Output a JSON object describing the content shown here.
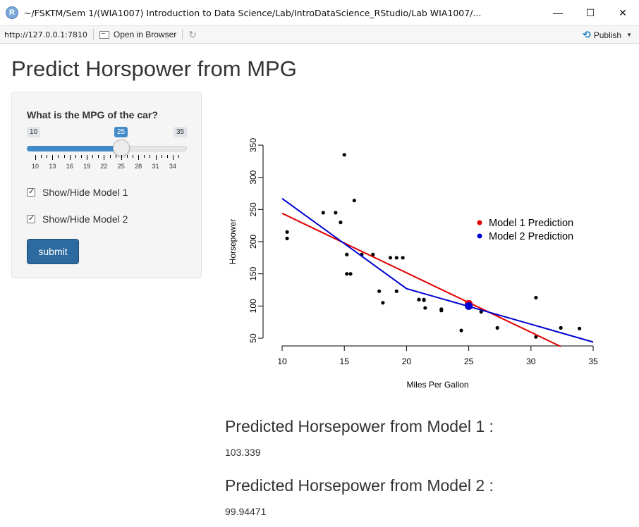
{
  "window": {
    "title": "~/FSKTM/Sem 1/(WIA1007) Introduction to Data Science/Lab/IntroDataScience_RStudio/Lab WIA1007/...",
    "app_icon": "R",
    "minimize": "—",
    "maximize": "☐",
    "close": "✕"
  },
  "toolbar": {
    "url": "http://127.0.0.1:7810",
    "open_browser": "Open in Browser",
    "publish": "Publish",
    "refresh_icon": "refresh-icon"
  },
  "page": {
    "title": "Predict Horspower from MPG"
  },
  "sidebar": {
    "slider": {
      "label": "What is the MPG of the car?",
      "min": 10,
      "max": 35,
      "value": 25,
      "min_label": "10",
      "max_label": "35",
      "value_label": "25",
      "tick_labels": [
        "10",
        "13",
        "16",
        "19",
        "22",
        "25",
        "28",
        "31",
        "34"
      ]
    },
    "checkbox1": {
      "label": "Show/Hide Model 1",
      "checked": true
    },
    "checkbox2": {
      "label": "Show/Hide Model 2",
      "checked": true
    },
    "submit_label": "submit"
  },
  "chart_data": {
    "type": "scatter",
    "title": "",
    "xlabel": "Miles Per Gallon",
    "ylabel": "Horsepower",
    "xlim": [
      10,
      35
    ],
    "ylim": [
      50,
      350
    ],
    "x_ticks": [
      "10",
      "15",
      "20",
      "25",
      "30",
      "35"
    ],
    "y_ticks": [
      "50",
      "100",
      "150",
      "200",
      "250",
      "300",
      "350"
    ],
    "points": [
      [
        21,
        110
      ],
      [
        21,
        110
      ],
      [
        22.8,
        93
      ],
      [
        21.4,
        110
      ],
      [
        18.7,
        175
      ],
      [
        18.1,
        105
      ],
      [
        14.3,
        245
      ],
      [
        24.4,
        62
      ],
      [
        22.8,
        95
      ],
      [
        19.2,
        123
      ],
      [
        17.8,
        123
      ],
      [
        16.4,
        180
      ],
      [
        17.3,
        180
      ],
      [
        15.2,
        180
      ],
      [
        10.4,
        205
      ],
      [
        10.4,
        215
      ],
      [
        14.7,
        230
      ],
      [
        32.4,
        66
      ],
      [
        30.4,
        52
      ],
      [
        33.9,
        65
      ],
      [
        21.5,
        97
      ],
      [
        15.5,
        150
      ],
      [
        15.2,
        150
      ],
      [
        13.3,
        245
      ],
      [
        19.2,
        175
      ],
      [
        27.3,
        66
      ],
      [
        26,
        91
      ],
      [
        30.4,
        113
      ],
      [
        15.8,
        264
      ],
      [
        19.7,
        175
      ],
      [
        15,
        335
      ],
      [
        21.4,
        109
      ]
    ],
    "series": [
      {
        "name": "Model 1 Prediction",
        "color": "#e00000",
        "line": [
          [
            10,
            244
          ],
          [
            32.4,
            37
          ]
        ]
      },
      {
        "name": "Model 2 Prediction",
        "color": "#0000d0",
        "line": [
          [
            10,
            267
          ],
          [
            20,
            127
          ],
          [
            35,
            44
          ]
        ]
      }
    ],
    "predictions": [
      {
        "name": "Model 1 Prediction",
        "x": 25,
        "y": 103.339,
        "color": "#e00000"
      },
      {
        "name": "Model 2 Prediction",
        "x": 25,
        "y": 99.94471,
        "color": "#0000d0"
      }
    ],
    "legend_position": "right",
    "grid": false
  },
  "outputs": {
    "model1_heading": "Predicted Horsepower from Model 1 :",
    "model1_value": "103.339",
    "model2_heading": "Predicted Horsepower from Model 2 :",
    "model2_value": "99.94471"
  }
}
